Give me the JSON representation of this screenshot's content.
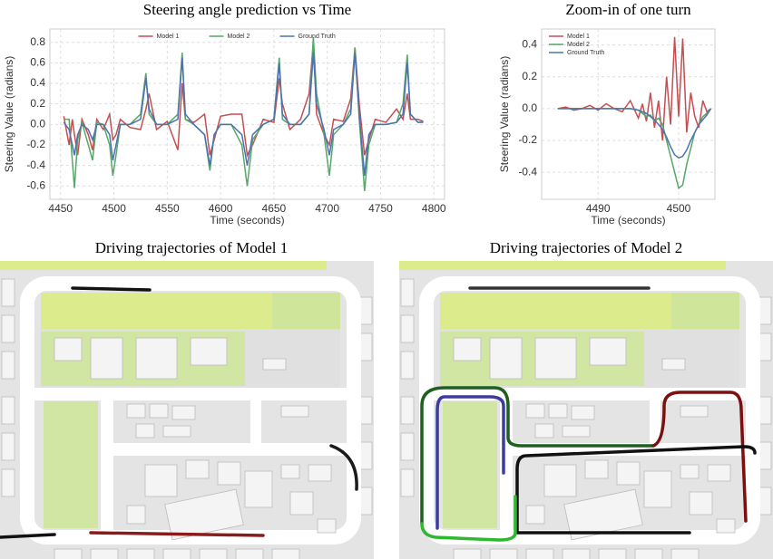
{
  "chart_data": [
    {
      "type": "line",
      "title": "Steering angle prediction vs Time",
      "xlabel": "Time (seconds)",
      "ylabel": "Steering Value (radians)",
      "legend": "upper center",
      "grid": true,
      "xlim": [
        4440,
        4810
      ],
      "xticks": [
        4450,
        4500,
        4550,
        4600,
        4650,
        4700,
        4750,
        4800
      ],
      "ylim": [
        -0.73,
        0.93
      ],
      "yticks": [
        -0.6,
        -0.4,
        -0.2,
        {
          "value": 0,
          "label": "0.0"
        },
        0.2,
        0.4,
        0.6,
        0.8
      ],
      "x": [
        4453,
        4458,
        4461,
        4463,
        4466,
        4470,
        4476,
        4480,
        4484,
        4490,
        4496,
        4499,
        4502,
        4506,
        4515,
        4525,
        4530,
        4533,
        4540,
        4550,
        4560,
        4564,
        4567,
        4575,
        4585,
        4590,
        4594,
        4600,
        4610,
        4620,
        4625,
        4630,
        4640,
        4650,
        4655,
        4658,
        4665,
        4675,
        4683,
        4687,
        4690,
        4697,
        4702,
        4706,
        4715,
        4722,
        4726,
        4730,
        4735,
        4739,
        4745,
        4755,
        4765,
        4771,
        4775,
        4778,
        4785,
        4790
      ],
      "series": [
        {
          "name": "Model 1",
          "color": "#c44e52",
          "values": [
            0.08,
            -0.2,
            0.05,
            -0.1,
            -0.3,
            0.05,
            -0.1,
            -0.25,
            0.05,
            -0.05,
            0.1,
            -0.15,
            -0.1,
            0.05,
            -0.03,
            -0.05,
            0.15,
            0.3,
            -0.05,
            0.03,
            -0.25,
            0.4,
            0.05,
            0.02,
            0.1,
            -0.3,
            -0.15,
            0.08,
            0.1,
            0.1,
            -0.3,
            -0.2,
            0.05,
            0.02,
            0.45,
            0.2,
            -0.05,
            0.05,
            0.3,
            0.8,
            0.1,
            -0.1,
            -0.2,
            0.05,
            0.03,
            0.25,
            0.75,
            0.2,
            -0.3,
            -0.15,
            0.05,
            0.02,
            0.15,
            0.05,
            0.3,
            0.05,
            0.05,
            0.03
          ]
        },
        {
          "name": "Model 2",
          "color": "#55a868",
          "values": [
            0.05,
            0.05,
            -0.35,
            -0.62,
            -0.15,
            0.02,
            -0.2,
            -0.35,
            0.02,
            0,
            -0.2,
            -0.5,
            -0.3,
            0,
            0,
            0.1,
            0.5,
            0.1,
            0,
            0,
            0.1,
            0.7,
            0.05,
            0,
            -0.1,
            -0.45,
            -0.1,
            0,
            0,
            -0.2,
            -0.6,
            -0.15,
            0,
            0.05,
            0.65,
            0.05,
            0,
            0,
            0.1,
            0.85,
            0.3,
            -0.1,
            -0.5,
            -0.1,
            0,
            0.15,
            0.75,
            0.05,
            -0.65,
            -0.2,
            0,
            0,
            0.02,
            0.2,
            0.68,
            0.1,
            0.02,
            0.02
          ]
        },
        {
          "name": "Ground Truth",
          "color": "#4c72b0",
          "values": [
            0.02,
            -0.05,
            -0.2,
            -0.3,
            -0.1,
            0,
            -0.05,
            -0.15,
            0,
            0,
            -0.1,
            -0.35,
            -0.2,
            0,
            0,
            0.05,
            0.45,
            0.15,
            0,
            0,
            0.05,
            0.65,
            0.1,
            0,
            -0.1,
            -0.4,
            -0.1,
            0,
            0,
            -0.1,
            -0.4,
            -0.1,
            0,
            0.05,
            0.6,
            0.1,
            0,
            0,
            0.1,
            0.7,
            0.2,
            -0.05,
            -0.3,
            -0.05,
            0,
            0.1,
            0.7,
            0.1,
            -0.5,
            -0.1,
            0,
            0,
            0.02,
            0.1,
            0.6,
            0.1,
            0.02,
            0.02
          ]
        }
      ]
    },
    {
      "type": "line",
      "title": "Zoom-in of one turn",
      "xlabel": "Time (seconds)",
      "ylabel": "Steering Value (radians)",
      "legend": "upper left",
      "grid": true,
      "xlim": [
        4483,
        4504.5
      ],
      "xticks": [
        4490,
        4500
      ],
      "ylim": [
        -0.57,
        0.5
      ],
      "yticks": [
        -0.4,
        -0.2,
        {
          "value": 0,
          "label": "0.0"
        },
        0.2,
        0.4
      ],
      "x": [
        4485,
        4486,
        4487,
        4488,
        4489,
        4490,
        4491,
        4492,
        4493,
        4494,
        4495,
        4495.5,
        4496,
        4496.5,
        4497,
        4497.5,
        4498,
        4498.5,
        4499,
        4499.5,
        4500,
        4500.5,
        4501,
        4501.5,
        4502,
        4502.5,
        4503,
        4503.5,
        4504
      ],
      "series": [
        {
          "name": "Model 1",
          "color": "#c44e52",
          "values": [
            0,
            0.01,
            -0.01,
            0,
            0.02,
            -0.01,
            0.03,
            0,
            -0.02,
            0.05,
            -0.06,
            0.03,
            -0.08,
            0.1,
            -0.12,
            0.05,
            -0.2,
            0.2,
            -0.1,
            0.45,
            -0.05,
            0.44,
            -0.15,
            0.1,
            -0.05,
            -0.12,
            0.05,
            -0.02,
            0
          ]
        },
        {
          "name": "Model 2",
          "color": "#55a868",
          "values": [
            0,
            0,
            0,
            0,
            0,
            0,
            0,
            0,
            0,
            0,
            -0.01,
            -0.03,
            -0.05,
            -0.04,
            -0.08,
            -0.06,
            -0.1,
            -0.2,
            -0.3,
            -0.4,
            -0.5,
            -0.48,
            -0.35,
            -0.25,
            -0.15,
            -0.1,
            -0.05,
            -0.03,
            0
          ]
        },
        {
          "name": "Ground Truth",
          "color": "#4c72b0",
          "values": [
            0,
            0,
            0,
            0,
            0,
            0,
            0,
            0,
            0,
            0,
            -0.01,
            -0.02,
            -0.03,
            -0.05,
            -0.07,
            -0.1,
            -0.13,
            -0.18,
            -0.24,
            -0.29,
            -0.31,
            -0.3,
            -0.26,
            -0.2,
            -0.15,
            -0.1,
            -0.07,
            -0.04,
            0
          ]
        }
      ]
    }
  ],
  "maps": [
    {
      "title": "Driving trajectories of Model 1"
    },
    {
      "title": "Driving trajectories of Model 2"
    }
  ]
}
